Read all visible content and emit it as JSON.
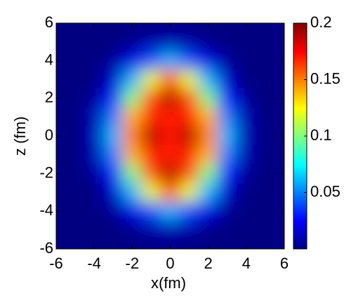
{
  "chart_data": {
    "type": "heatmap",
    "xlabel": "x(fm)",
    "ylabel": "z (fm)",
    "x": [
      -6,
      -5,
      -4,
      -3,
      -2,
      -1,
      0,
      1,
      2,
      3,
      4,
      5,
      6
    ],
    "y": [
      6,
      5,
      4,
      3,
      2,
      1,
      0,
      -1,
      -2,
      -3,
      -4,
      -5,
      -6
    ],
    "values": [
      [
        0,
        0,
        0,
        0,
        0,
        0,
        0,
        0,
        0,
        0,
        0,
        0,
        0
      ],
      [
        0,
        0,
        0,
        0,
        0.003,
        0.008,
        0.01,
        0.008,
        0.003,
        0,
        0,
        0,
        0
      ],
      [
        0,
        0,
        0,
        0.005,
        0.02,
        0.04,
        0.06,
        0.04,
        0.02,
        0.005,
        0,
        0,
        0
      ],
      [
        0,
        0,
        0,
        0.015,
        0.06,
        0.12,
        0.16,
        0.12,
        0.06,
        0.015,
        0,
        0,
        0
      ],
      [
        0,
        0,
        0.005,
        0.03,
        0.1,
        0.16,
        0.19,
        0.16,
        0.1,
        0.03,
        0.005,
        0,
        0
      ],
      [
        0,
        0,
        0.01,
        0.05,
        0.14,
        0.17,
        0.17,
        0.17,
        0.14,
        0.05,
        0.01,
        0,
        0
      ],
      [
        0,
        0,
        0.01,
        0.06,
        0.15,
        0.19,
        0.17,
        0.19,
        0.15,
        0.06,
        0.01,
        0,
        0
      ],
      [
        0,
        0,
        0.01,
        0.05,
        0.14,
        0.17,
        0.17,
        0.17,
        0.14,
        0.05,
        0.01,
        0,
        0
      ],
      [
        0,
        0,
        0.005,
        0.03,
        0.1,
        0.16,
        0.19,
        0.16,
        0.1,
        0.03,
        0.005,
        0,
        0
      ],
      [
        0,
        0,
        0,
        0.015,
        0.06,
        0.12,
        0.16,
        0.12,
        0.06,
        0.015,
        0,
        0,
        0
      ],
      [
        0,
        0,
        0,
        0.005,
        0.02,
        0.04,
        0.06,
        0.04,
        0.02,
        0.005,
        0,
        0,
        0
      ],
      [
        0,
        0,
        0,
        0,
        0.003,
        0.008,
        0.01,
        0.008,
        0.003,
        0,
        0,
        0,
        0
      ],
      [
        0,
        0,
        0,
        0,
        0,
        0,
        0,
        0,
        0,
        0,
        0,
        0,
        0
      ]
    ],
    "colormap": "jet",
    "xlim": [
      -6,
      6
    ],
    "ylim": [
      -6,
      6
    ],
    "xticks": [
      -6,
      -4,
      -2,
      0,
      2,
      4,
      6
    ],
    "yticks": [
      -6,
      -4,
      -2,
      0,
      2,
      4,
      6
    ],
    "clim": [
      0,
      0.2
    ],
    "cticks": [
      0.05,
      0.1,
      0.15,
      0.2
    ]
  }
}
